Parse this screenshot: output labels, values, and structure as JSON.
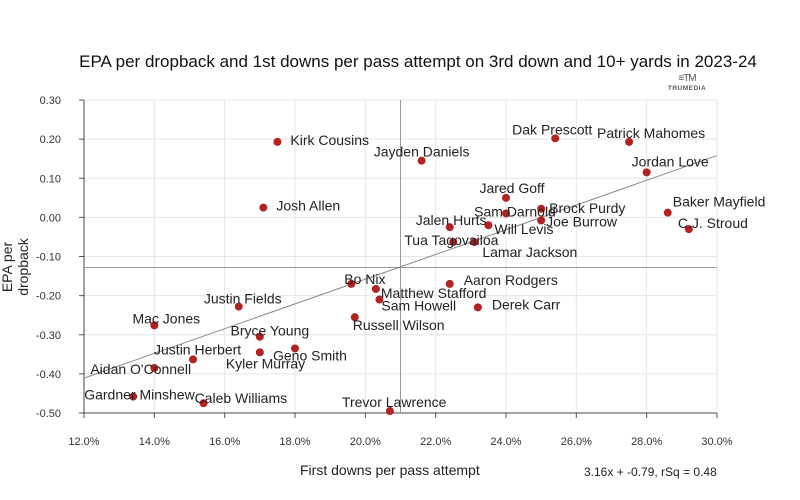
{
  "chart_data": {
    "type": "scatter",
    "title": "EPA per dropback and 1st downs per pass attempt on 3rd down and 10+ yards in 2023-24",
    "xlabel": "First downs per pass attempt",
    "ylabel": "EPA per dropback",
    "logo_text": "TRUMEDIA",
    "regression_label": "3.16x + -0.79, rSq = 0.48",
    "xlim": [
      0.12,
      0.3
    ],
    "ylim": [
      -0.5,
      0.3
    ],
    "xticks": [
      "12.0%",
      "14.0%",
      "16.0%",
      "18.0%",
      "20.0%",
      "22.0%",
      "24.0%",
      "26.0%",
      "28.0%",
      "30.0%"
    ],
    "yticks": [
      "0.30",
      "0.20",
      "0.10",
      "0.00",
      "-0.10",
      "-0.20",
      "-0.30",
      "-0.40",
      "-0.50"
    ],
    "xtick_values": [
      0.12,
      0.14,
      0.16,
      0.18,
      0.2,
      0.22,
      0.24,
      0.26,
      0.28,
      0.3
    ],
    "ytick_values": [
      0.3,
      0.2,
      0.1,
      0.0,
      -0.1,
      -0.2,
      -0.3,
      -0.4,
      -0.5
    ],
    "reference_lines": {
      "x_mean": 0.21,
      "y_mean": -0.128
    },
    "trendline": {
      "slope": 3.16,
      "intercept": -0.79,
      "x_range": [
        0.12,
        0.3
      ]
    },
    "grid": true,
    "point_color": "#b22222",
    "points": [
      {
        "name": "Kirk Cousins",
        "x": 0.175,
        "y": 0.193
      },
      {
        "name": "Josh Allen",
        "x": 0.171,
        "y": 0.025
      },
      {
        "name": "Jayden Daniels",
        "x": 0.216,
        "y": 0.145
      },
      {
        "name": "Dak Prescott",
        "x": 0.254,
        "y": 0.202
      },
      {
        "name": "Patrick Mahomes",
        "x": 0.275,
        "y": 0.193
      },
      {
        "name": "Jordan Love",
        "x": 0.28,
        "y": 0.115
      },
      {
        "name": "Jared Goff",
        "x": 0.24,
        "y": 0.05
      },
      {
        "name": "Sam Darnold",
        "x": 0.24,
        "y": 0.01
      },
      {
        "name": "Brock Purdy",
        "x": 0.25,
        "y": 0.022
      },
      {
        "name": "Baker Mayfield",
        "x": 0.286,
        "y": 0.012
      },
      {
        "name": "C.J. Stroud",
        "x": 0.292,
        "y": -0.03
      },
      {
        "name": "Joe Burrow",
        "x": 0.25,
        "y": -0.008
      },
      {
        "name": "Will Levis",
        "x": 0.235,
        "y": -0.02
      },
      {
        "name": "Jalen Hurts",
        "x": 0.224,
        "y": -0.025
      },
      {
        "name": "Tua Tagovailoa",
        "x": 0.225,
        "y": -0.063
      },
      {
        "name": "Lamar Jackson",
        "x": 0.231,
        "y": -0.063
      },
      {
        "name": "Bo Nix",
        "x": 0.196,
        "y": -0.17
      },
      {
        "name": "Aaron Rodgers",
        "x": 0.224,
        "y": -0.17
      },
      {
        "name": "Matthew Stafford",
        "x": 0.203,
        "y": -0.183
      },
      {
        "name": "Sam Howell",
        "x": 0.204,
        "y": -0.21
      },
      {
        "name": "Derek Carr",
        "x": 0.232,
        "y": -0.23
      },
      {
        "name": "Russell Wilson",
        "x": 0.197,
        "y": -0.255
      },
      {
        "name": "Justin Fields",
        "x": 0.164,
        "y": -0.228
      },
      {
        "name": "Mac Jones",
        "x": 0.14,
        "y": -0.276
      },
      {
        "name": "Bryce Young",
        "x": 0.17,
        "y": -0.305
      },
      {
        "name": "Geno Smith",
        "x": 0.18,
        "y": -0.335
      },
      {
        "name": "Justin Herbert",
        "x": 0.151,
        "y": -0.363
      },
      {
        "name": "Kyler Murray",
        "x": 0.17,
        "y": -0.345
      },
      {
        "name": "Aidan O'Connell",
        "x": 0.14,
        "y": -0.385
      },
      {
        "name": "Gardner Minshew",
        "x": 0.134,
        "y": -0.458
      },
      {
        "name": "Caleb Williams",
        "x": 0.154,
        "y": -0.475
      },
      {
        "name": "Trevor Lawrence",
        "x": 0.207,
        "y": -0.495
      }
    ]
  }
}
